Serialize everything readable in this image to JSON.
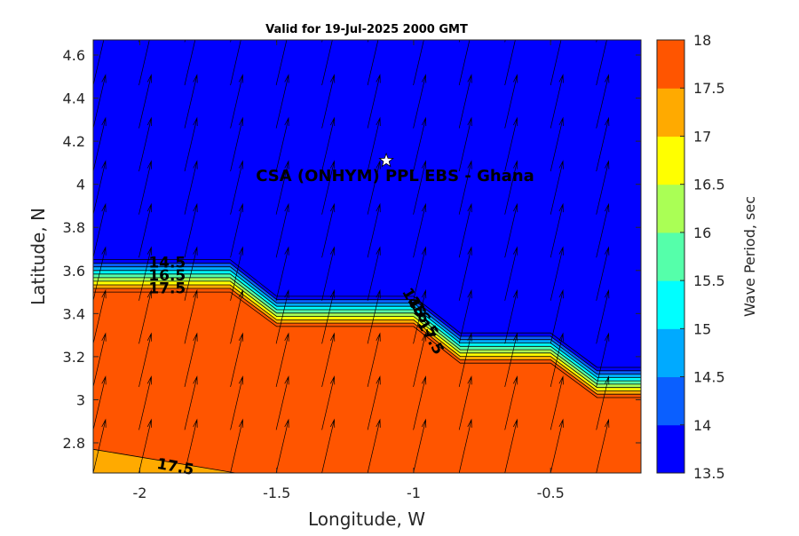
{
  "chart_data": {
    "type": "filled-contour",
    "title": "Valid for 19-Jul-2025 2000 GMT",
    "xlabel": "Longitude, W",
    "ylabel": "Latitude, N",
    "xlim": [
      -2.17,
      -0.17
    ],
    "ylim": [
      2.66,
      4.67
    ],
    "xticks": [
      -2,
      -1.5,
      -1,
      -0.5
    ],
    "xtick_labels": [
      "-2",
      "-1.5",
      "-1",
      "-0.5"
    ],
    "yticks": [
      2.8,
      3,
      3.2,
      3.4,
      3.6,
      3.8,
      4,
      4.2,
      4.4,
      4.6
    ],
    "ytick_labels": [
      "2.8",
      "3",
      "3.2",
      "3.4",
      "3.6",
      "3.8",
      "4",
      "4.2",
      "4.4",
      "4.6"
    ],
    "colorbar": {
      "label": "Wave Period, sec",
      "levels": [
        13.5,
        14,
        14.5,
        15,
        15.5,
        16,
        16.5,
        17,
        17.5,
        18
      ],
      "tick_labels": [
        "13.5",
        "14",
        "14.5",
        "15",
        "15.5",
        "16",
        "16.5",
        "17",
        "17.5",
        "18"
      ],
      "colors": [
        "#0000ff",
        "#0a5fff",
        "#00aaff",
        "#00ffff",
        "#55ffaa",
        "#aaff55",
        "#ffff00",
        "#ffaa00",
        "#ff5500"
      ]
    },
    "regions": [
      {
        "name": "low-period-zone",
        "period_sec": 13.75,
        "color": "#0000ff"
      },
      {
        "name": "high-period-zone",
        "period_sec": 17.75,
        "color": "#ff5500"
      },
      {
        "name": "corner-zone",
        "period_sec": 17.25,
        "color": "#ffaa00"
      }
    ],
    "transition_boundary": [
      {
        "lon": -2.17,
        "lat_top": 3.65,
        "lat_bottom": 3.5
      },
      {
        "lon": -1.67,
        "lat_top": 3.65,
        "lat_bottom": 3.5
      },
      {
        "lon": -1.5,
        "lat_top": 3.48,
        "lat_bottom": 3.34
      },
      {
        "lon": -1.0,
        "lat_top": 3.48,
        "lat_bottom": 3.34
      },
      {
        "lon": -0.83,
        "lat_top": 3.31,
        "lat_bottom": 3.17
      },
      {
        "lon": -0.5,
        "lat_top": 3.31,
        "lat_bottom": 3.17
      },
      {
        "lon": -0.33,
        "lat_top": 3.15,
        "lat_bottom": 3.01
      },
      {
        "lon": -0.17,
        "lat_top": 3.15,
        "lat_bottom": 3.01
      }
    ],
    "corner_zone_boundary": [
      {
        "lon": -2.17,
        "lat": 2.77
      },
      {
        "lon": -1.65,
        "lat": 2.66
      }
    ],
    "contour_labels": [
      {
        "text": "14.5",
        "lon": -1.9,
        "lat": 3.635,
        "angle": 0
      },
      {
        "text": "16.5",
        "lon": -1.9,
        "lat": 3.575,
        "angle": 0
      },
      {
        "text": "17.5",
        "lon": -1.9,
        "lat": 3.515,
        "angle": 0
      },
      {
        "text": "14",
        "lon": -1.01,
        "lat": 3.47,
        "angle": 60
      },
      {
        "text": "15",
        "lon": -0.99,
        "lat": 3.43,
        "angle": 60
      },
      {
        "text": "16.5",
        "lon": -0.96,
        "lat": 3.37,
        "angle": 60
      },
      {
        "text": "17.5",
        "lon": -0.94,
        "lat": 3.29,
        "angle": 60
      },
      {
        "text": "17.5",
        "lon": -1.87,
        "lat": 2.687,
        "angle": 10
      }
    ],
    "vector_field": {
      "direction_deg_from_north": 13,
      "arrow_length_deg_lat": 0.2,
      "lon_start": -2.17,
      "lon_step": 0.167,
      "lat_start": 2.66,
      "lat_step": 0.2
    },
    "site": {
      "label": "CSA (ONHYM) PPL EBS  - Ghana",
      "lon": -1.1,
      "lat": 4.11
    },
    "grid": false,
    "legend": "colorbar-right"
  }
}
